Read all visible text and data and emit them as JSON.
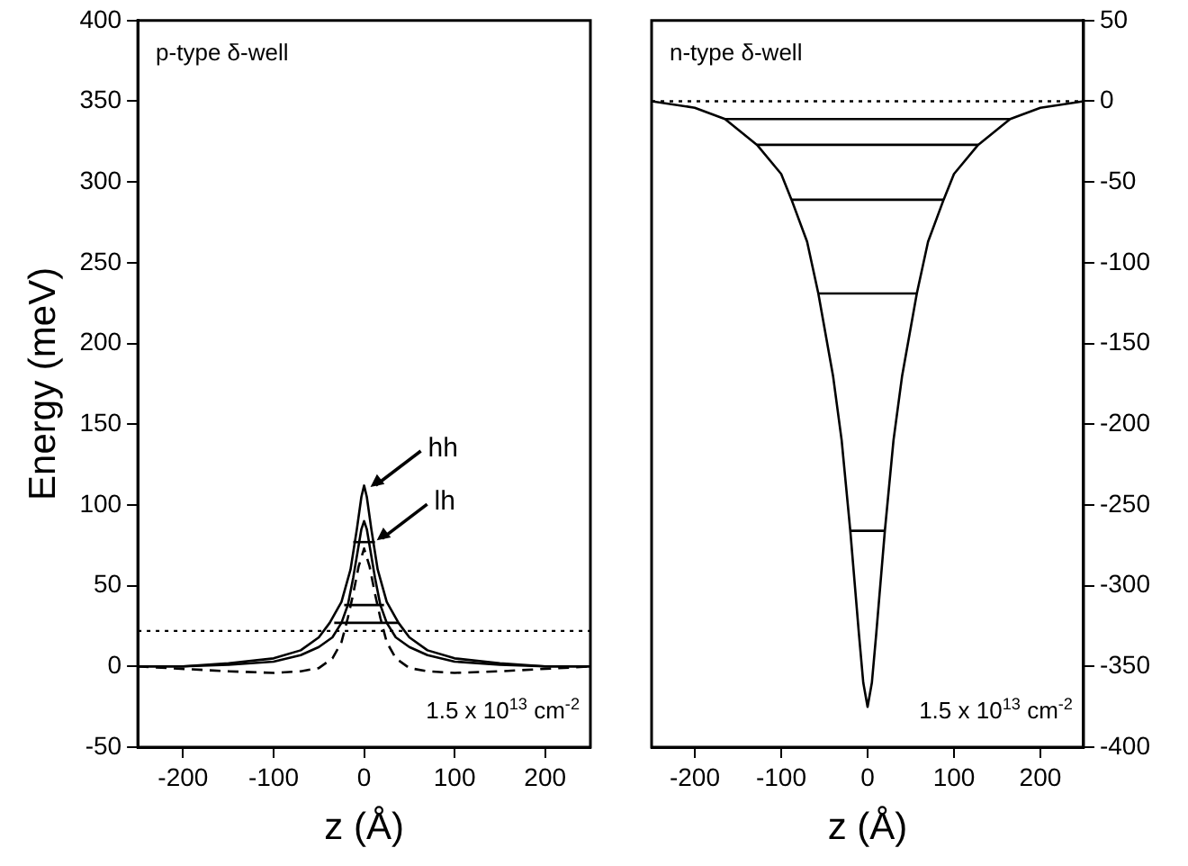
{
  "chart_data": [
    {
      "type": "line",
      "xlabel": "z (Å)",
      "ylabel": "Energy (meV)",
      "xlim": [
        -250,
        250
      ],
      "xticks": [
        -200,
        -100,
        0,
        100,
        200
      ],
      "ylim": [
        -50,
        400
      ],
      "yticks": [
        -50,
        0,
        50,
        100,
        150,
        200,
        250,
        300,
        350,
        400
      ],
      "series": [
        {
          "color": "#000000",
          "line_style": "solid",
          "x": [
            -250,
            -200,
            -150,
            -100,
            -70,
            -50,
            -38,
            -25,
            -15,
            -8,
            -3,
            0,
            3,
            8,
            15,
            25,
            38,
            50,
            70,
            100,
            150,
            200,
            250
          ],
          "values": [
            0,
            0,
            2,
            5,
            10,
            18,
            27,
            40,
            60,
            85,
            105,
            112,
            105,
            85,
            60,
            40,
            27,
            18,
            10,
            5,
            2,
            0,
            0
          ]
        },
        {
          "color": "#000000",
          "line_style": "solid",
          "x": [
            -250,
            -200,
            -150,
            -100,
            -70,
            -50,
            -35,
            -25,
            -18,
            -12,
            -6,
            -3,
            0,
            3,
            6,
            12,
            18,
            25,
            35,
            50,
            70,
            100,
            150,
            200,
            250
          ],
          "values": [
            0,
            0,
            1,
            3,
            7,
            12,
            18,
            27,
            38,
            55,
            75,
            85,
            90,
            85,
            75,
            55,
            38,
            27,
            18,
            12,
            7,
            3,
            1,
            0,
            0
          ]
        },
        {
          "color": "#000000",
          "line_style": "dashed",
          "x": [
            -250,
            -150,
            -100,
            -70,
            -50,
            -35,
            -25,
            -18,
            -12,
            -6,
            0,
            6,
            12,
            18,
            25,
            35,
            50,
            70,
            100,
            150,
            250
          ],
          "values": [
            0,
            -3,
            -4,
            -3,
            -1,
            5,
            15,
            30,
            45,
            62,
            73,
            62,
            45,
            30,
            15,
            5,
            -1,
            -3,
            -4,
            -3,
            0
          ]
        },
        {
          "color": "#000000",
          "line_style": "solid",
          "x": [
            -12,
            12
          ],
          "values": [
            77,
            77
          ]
        },
        {
          "color": "#000000",
          "line_style": "solid",
          "x": [
            -22,
            22
          ],
          "values": [
            38,
            38
          ]
        },
        {
          "color": "#000000",
          "line_style": "solid",
          "x": [
            -33,
            38
          ],
          "values": [
            27,
            27
          ]
        }
      ],
      "ref_lines": [
        {
          "axis": "y",
          "value": 22,
          "line_style": "dotted",
          "color": "#000000"
        }
      ],
      "annotations": [
        "p-type δ-well",
        "1.5 x 10$^{13}$ cm$^{-2}$",
        {
          "text": "hh",
          "x": 3,
          "y": 110
        },
        {
          "text": "lh",
          "x": 10,
          "y": 77
        }
      ]
    },
    {
      "type": "line",
      "xlabel": "z (Å)",
      "xlim": [
        -250,
        250
      ],
      "xticks": [
        -200,
        -100,
        0,
        100,
        200
      ],
      "y2lim": [
        -400,
        50
      ],
      "y2ticks": [
        -400,
        -350,
        -300,
        -250,
        -200,
        -150,
        -100,
        -50,
        0,
        50
      ],
      "series": [
        {
          "color": "#000000",
          "line_style": "solid",
          "axis": "y2",
          "x": [
            -250,
            -200,
            -165,
            -128,
            -100,
            -88,
            -70,
            -57,
            -40,
            -30,
            -20,
            -10,
            -5,
            0,
            5,
            10,
            20,
            30,
            40,
            57,
            70,
            88,
            100,
            128,
            165,
            200,
            250
          ],
          "values": [
            0,
            -4,
            -11,
            -27,
            -45,
            -61,
            -87,
            -119,
            -170,
            -210,
            -266,
            -330,
            -360,
            -375,
            -360,
            -330,
            -266,
            -210,
            -170,
            -119,
            -87,
            -61,
            -45,
            -27,
            -11,
            -4,
            0
          ]
        },
        {
          "color": "#000000",
          "line_style": "solid",
          "axis": "y2",
          "x": [
            -165,
            165
          ],
          "values": [
            -11,
            -11
          ]
        },
        {
          "color": "#000000",
          "line_style": "solid",
          "axis": "y2",
          "x": [
            -128,
            128
          ],
          "values": [
            -27,
            -27
          ]
        },
        {
          "color": "#000000",
          "line_style": "solid",
          "axis": "y2",
          "x": [
            -88,
            88
          ],
          "values": [
            -61,
            -61
          ]
        },
        {
          "color": "#000000",
          "line_style": "solid",
          "axis": "y2",
          "x": [
            -57,
            57
          ],
          "values": [
            -119,
            -119
          ]
        },
        {
          "color": "#000000",
          "line_style": "solid",
          "axis": "y2",
          "x": [
            -20,
            20
          ],
          "values": [
            -266,
            -266
          ]
        }
      ],
      "ref_lines": [
        {
          "axis": "y2",
          "value": 0,
          "line_style": "dotted",
          "color": "#000000"
        }
      ],
      "annotations": [
        "n-type δ-well",
        "1.5 x 10$^{13}$ cm$^{-2}$"
      ]
    }
  ]
}
